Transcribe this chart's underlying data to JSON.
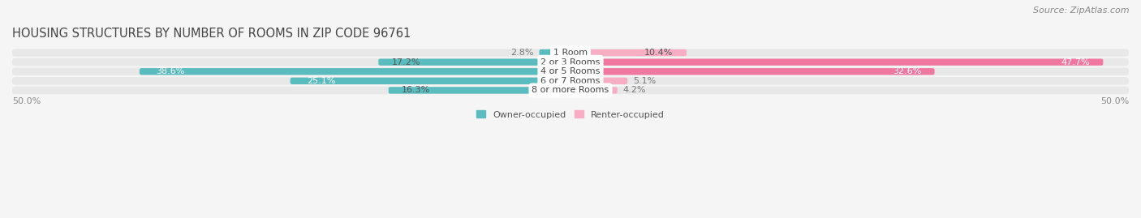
{
  "title": "HOUSING STRUCTURES BY NUMBER OF ROOMS IN ZIP CODE 96761",
  "source": "Source: ZipAtlas.com",
  "categories": [
    "1 Room",
    "2 or 3 Rooms",
    "4 or 5 Rooms",
    "6 or 7 Rooms",
    "8 or more Rooms"
  ],
  "owner_values": [
    2.8,
    17.2,
    38.6,
    25.1,
    16.3
  ],
  "renter_values": [
    10.4,
    47.7,
    32.6,
    5.1,
    4.2
  ],
  "owner_color": "#5bbcbf",
  "renter_color": "#f078a0",
  "renter_color_light": "#f7aec5",
  "owner_label": "Owner-occupied",
  "renter_label": "Renter-occupied",
  "axis_label_left": "50.0%",
  "axis_label_right": "50.0%",
  "xlim": 50.0,
  "title_fontsize": 10.5,
  "source_fontsize": 8,
  "value_fontsize": 8,
  "cat_fontsize": 8,
  "bar_height": 0.72,
  "row_bg_color": "#e8e8e8",
  "background_color": "#f5f5f5",
  "white_color": "#ffffff"
}
